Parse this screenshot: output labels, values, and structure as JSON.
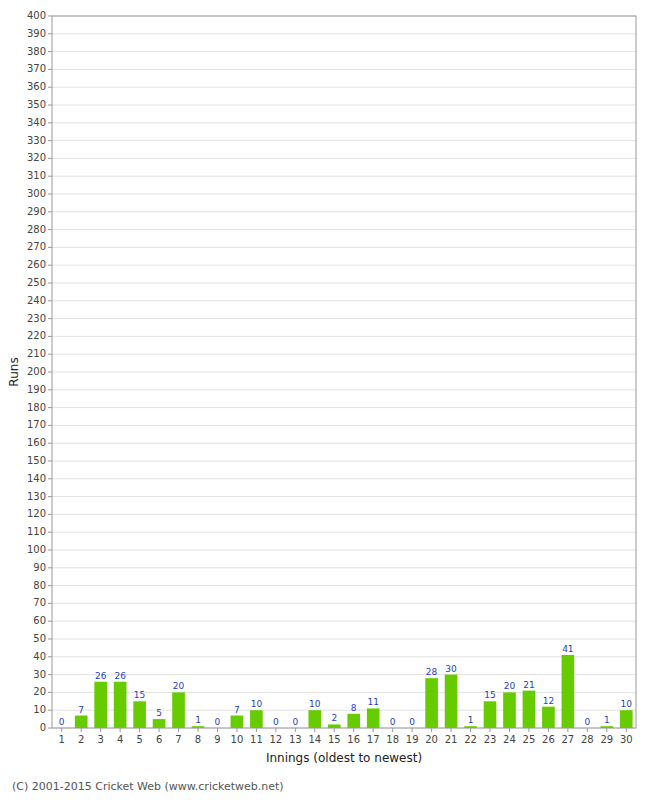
{
  "chart_data": {
    "type": "bar",
    "xlabel": "Innings (oldest to newest)",
    "ylabel": "Runs",
    "annotations": [
      "(C) 2001-2015 Cricket Web (www.cricketweb.net)"
    ],
    "categories": [
      "1",
      "2",
      "3",
      "4",
      "5",
      "6",
      "7",
      "8",
      "9",
      "10",
      "11",
      "12",
      "13",
      "14",
      "15",
      "16",
      "17",
      "18",
      "19",
      "20",
      "21",
      "22",
      "23",
      "24",
      "25",
      "26",
      "27",
      "28",
      "29",
      "30"
    ],
    "values": [
      0,
      7,
      26,
      26,
      15,
      5,
      20,
      1,
      0,
      7,
      10,
      0,
      0,
      10,
      2,
      8,
      11,
      0,
      0,
      28,
      30,
      1,
      15,
      20,
      21,
      12,
      41,
      0,
      1,
      10
    ],
    "color": "#66cc00",
    "ylim": [
      0,
      400
    ],
    "yticks": [
      0,
      10,
      20,
      30,
      40,
      50,
      60,
      70,
      80,
      90,
      100,
      110,
      120,
      130,
      140,
      150,
      160,
      170,
      180,
      190,
      200,
      210,
      220,
      230,
      240,
      250,
      260,
      270,
      280,
      290,
      300,
      310,
      320,
      330,
      340,
      350,
      360,
      370,
      380,
      390,
      400
    ],
    "grid": true,
    "data_labels": true
  }
}
